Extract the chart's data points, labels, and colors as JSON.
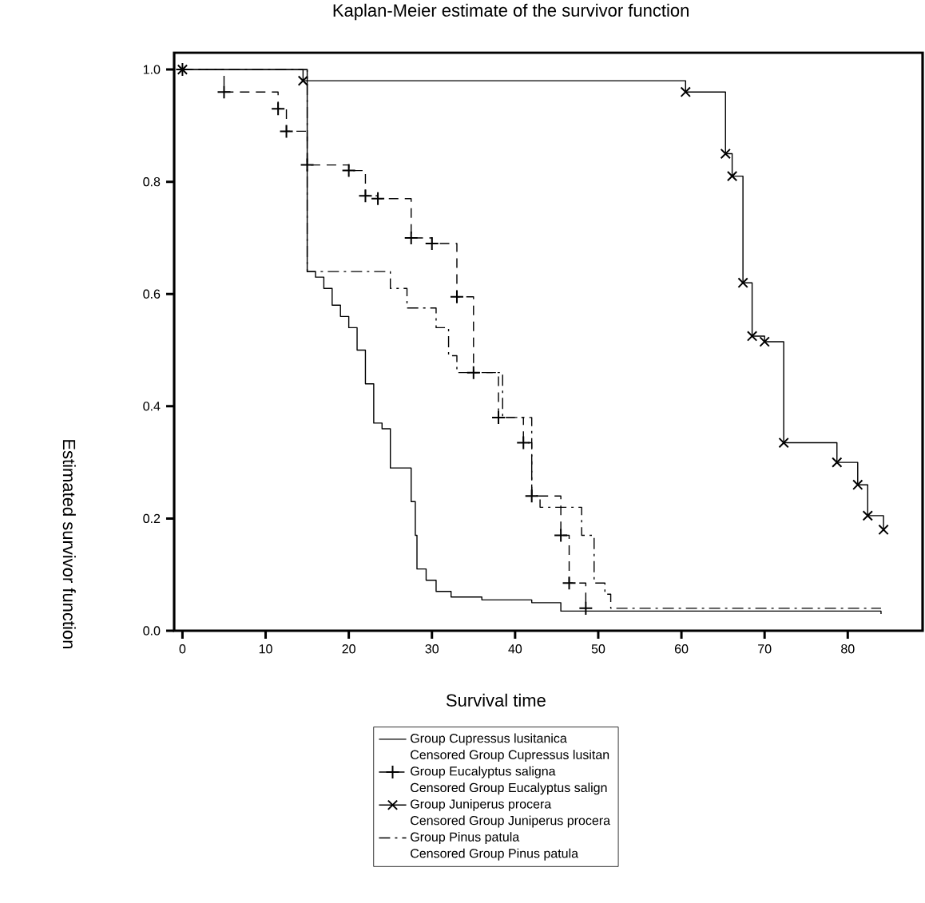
{
  "chart_data": {
    "type": "step",
    "title": "Kaplan-Meier estimate of the survivor function",
    "xlabel": "Survival time",
    "ylabel": "Estimated survivor function",
    "xlim": [
      -1,
      89
    ],
    "ylim": [
      0,
      1.03
    ],
    "xticks": [
      0,
      10,
      20,
      30,
      40,
      50,
      60,
      70,
      80
    ],
    "yticks": [
      {
        "value": 0,
        "label": "0.0"
      },
      {
        "value": 0.2,
        "label": "0.2"
      },
      {
        "value": 0.4,
        "label": "0.4"
      },
      {
        "value": 0.6,
        "label": "0.6"
      },
      {
        "value": 0.8,
        "label": "0.8"
      },
      {
        "value": 1,
        "label": "1.0"
      }
    ],
    "legend": "bottom",
    "grid": false,
    "series": [
      {
        "name": "Group Cupressus lusitanica",
        "color": "#000000",
        "line_style": "solid",
        "x": [
          0,
          15,
          16,
          17,
          18,
          19,
          20,
          21,
          22,
          23,
          24,
          25,
          27.5,
          28,
          28.2,
          29.3,
          30.5,
          32.3,
          36,
          42,
          45.5,
          83.6,
          84
        ],
        "values": [
          1.0,
          0.64,
          0.63,
          0.61,
          0.58,
          0.56,
          0.54,
          0.5,
          0.44,
          0.37,
          0.36,
          0.29,
          0.23,
          0.17,
          0.11,
          0.09,
          0.07,
          0.06,
          0.055,
          0.05,
          0.035,
          0.035,
          0.03
        ]
      },
      {
        "name": "Group Eucalyptus saligna",
        "color": "#000000",
        "line_style": "dashed",
        "marker": "plus",
        "x": [
          0,
          5,
          11.5,
          12.5,
          15,
          20,
          22,
          23.5,
          27.5,
          30,
          33,
          35,
          38,
          41,
          42,
          45.5,
          46.5,
          48.5
        ],
        "values": [
          1.0,
          0.96,
          0.93,
          0.89,
          0.83,
          0.82,
          0.775,
          0.77,
          0.7,
          0.69,
          0.595,
          0.46,
          0.38,
          0.335,
          0.24,
          0.17,
          0.085,
          0.04
        ]
      },
      {
        "name": "Group Juniperus procera",
        "color": "#000000",
        "line_style": "solid",
        "marker": "cross",
        "x": [
          0,
          14.5,
          60.5,
          65.3,
          66.1,
          67.4,
          68.5,
          70,
          72.3,
          78.7,
          81.2,
          82.4,
          84.3
        ],
        "values": [
          1.0,
          0.98,
          0.96,
          0.85,
          0.81,
          0.62,
          0.525,
          0.515,
          0.335,
          0.3,
          0.26,
          0.205,
          0.18
        ]
      },
      {
        "name": "Group Pinus patula",
        "color": "#000000",
        "line_style": "dashdot",
        "x": [
          0,
          15,
          25,
          27,
          30.5,
          32,
          33,
          38.5,
          42,
          43,
          48,
          49.5,
          50.8,
          51.5,
          84
        ],
        "values": [
          1.0,
          0.64,
          0.61,
          0.575,
          0.54,
          0.49,
          0.46,
          0.38,
          0.24,
          0.22,
          0.17,
          0.085,
          0.065,
          0.04,
          0.04
        ]
      }
    ],
    "annotations": [
      "Censored Group Cupressus lusitan",
      "Censored Group Eucalyptus salign",
      "Censored Group Juniperus procera",
      "Censored Group Pinus patula"
    ]
  }
}
